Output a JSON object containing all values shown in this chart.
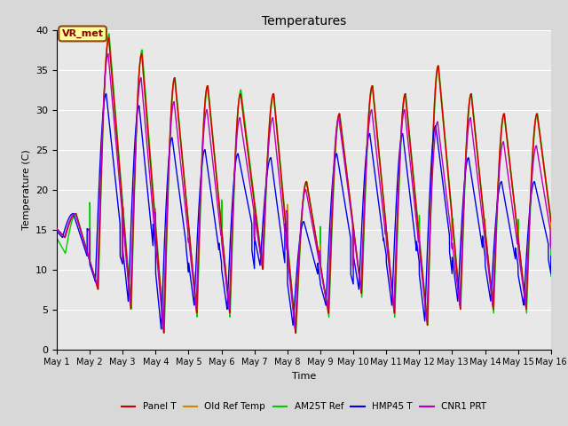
{
  "title": "Temperatures",
  "xlabel": "Time",
  "ylabel": "Temperature (C)",
  "xlim": [
    0,
    15
  ],
  "ylim": [
    0,
    40
  ],
  "yticks": [
    0,
    5,
    10,
    15,
    20,
    25,
    30,
    35,
    40
  ],
  "xtick_labels": [
    "May 1",
    "May 2",
    "May 3",
    "May 4",
    "May 5",
    "May 6",
    "May 7",
    "May 8",
    "May 9",
    "May 10",
    "May 11",
    "May 12",
    "May 13",
    "May 14",
    "May 15",
    "May 16"
  ],
  "colors": {
    "Panel T": "#cc0000",
    "Old Ref Temp": "#cc8800",
    "AM25T Ref": "#00cc00",
    "HMP45 T": "#0000ee",
    "CNR1 PRT": "#bb00bb"
  },
  "annotation_text": "VR_met",
  "background_color": "#e8e8e8",
  "figsize": [
    6.4,
    4.8
  ],
  "dpi": 100,
  "daily_max": [
    17,
    39,
    37,
    34,
    33,
    32,
    32,
    21,
    29.5,
    33,
    32,
    35.5,
    32,
    29.5,
    29.5,
    11
  ],
  "daily_min": [
    14,
    7.5,
    5,
    2,
    4.5,
    4.5,
    10,
    2,
    4.5,
    7,
    4.5,
    3,
    5,
    5,
    5,
    8
  ],
  "am25t_max": [
    17,
    39.5,
    37.5,
    34,
    33,
    32.5,
    32,
    21,
    29.5,
    33,
    32,
    35.5,
    32,
    29.5,
    29.5,
    11
  ],
  "am25t_min": [
    12,
    7.5,
    5,
    2,
    4,
    4,
    10,
    2,
    4,
    6.5,
    4,
    3,
    5,
    4.5,
    4.5,
    8
  ],
  "hmp45_max": [
    17,
    32,
    30.5,
    26.5,
    25,
    24.5,
    24,
    16,
    24.5,
    27,
    27,
    28,
    24,
    21,
    21,
    10
  ],
  "hmp45_min": [
    14,
    8.5,
    6,
    2.5,
    5.5,
    5,
    10.5,
    3,
    5.5,
    7.5,
    5.5,
    3.5,
    6,
    6,
    5.5,
    8.5
  ],
  "hmp45_phase": 0.08,
  "cnr1_max": [
    17,
    37,
    34,
    31,
    30,
    29,
    29,
    20,
    29,
    30,
    30,
    28.5,
    29,
    26,
    25.5,
    11
  ],
  "cnr1_min": [
    14,
    8,
    5.5,
    2.5,
    5,
    5,
    10.5,
    2.5,
    5,
    7.5,
    5,
    3.5,
    5.5,
    5.5,
    5.5,
    8.5
  ],
  "cnr1_phase": 0.02
}
